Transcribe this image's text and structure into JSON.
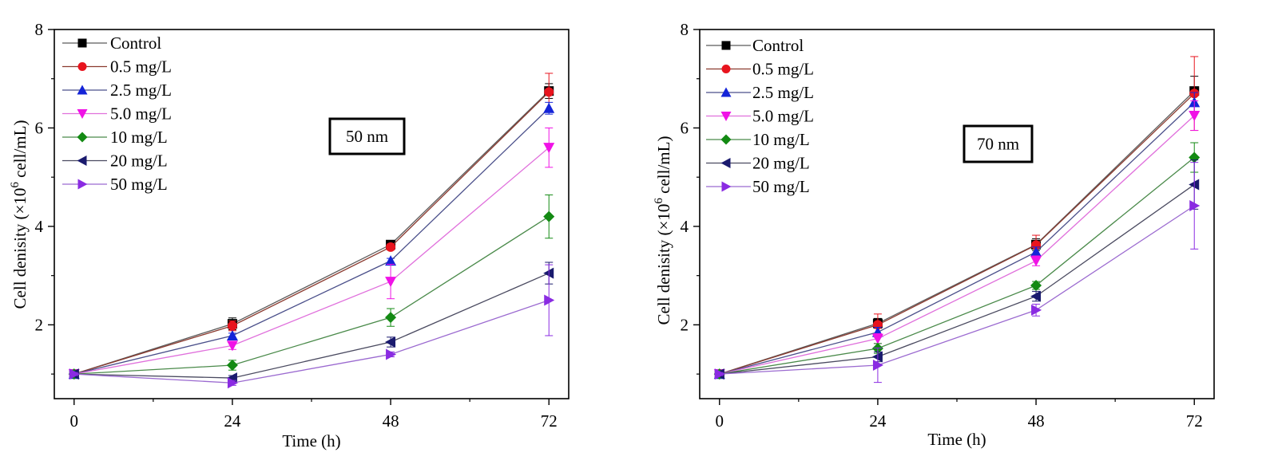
{
  "chart_data": [
    {
      "type": "line",
      "annotation": "50 nm",
      "xlabel": "Time (h)",
      "ylabel_main": "Cell denisity (×10",
      "ylabel_sup": "6",
      "ylabel_tail": " cell/mL)",
      "x": [
        0,
        24,
        48,
        72
      ],
      "xticks": [
        "0",
        "24",
        "48",
        "72"
      ],
      "yticks": [
        "2",
        "4",
        "6",
        "8"
      ],
      "xlim": [
        -3,
        75
      ],
      "ylim": [
        0.5,
        8
      ],
      "legend_position": "top-left",
      "series": [
        {
          "name": "Control",
          "marker": "square",
          "color": "#000000",
          "line": "#5a5a5a",
          "values": [
            1.0,
            2.02,
            3.63,
            6.75
          ],
          "errors": [
            0.03,
            0.12,
            0.05,
            0.15
          ]
        },
        {
          "name": "0.5 mg/L",
          "marker": "circle",
          "color": "#e8141e",
          "line": "#8b3a2f",
          "values": [
            1.0,
            1.98,
            3.58,
            6.73
          ],
          "errors": [
            0.03,
            0.1,
            0.06,
            0.38
          ]
        },
        {
          "name": "2.5 mg/L",
          "marker": "tri-up",
          "color": "#1424d8",
          "line": "#4a4f8a",
          "values": [
            1.0,
            1.78,
            3.3,
            6.4
          ],
          "errors": [
            0.03,
            0.05,
            0.05,
            0.12
          ]
        },
        {
          "name": "5.0 mg/L",
          "marker": "tri-down",
          "color": "#f012e6",
          "line": "#e070dc",
          "values": [
            1.0,
            1.58,
            2.88,
            5.6
          ],
          "errors": [
            0.03,
            0.08,
            0.35,
            0.4
          ]
        },
        {
          "name": "10  mg/L",
          "marker": "diamond",
          "color": "#138a13",
          "line": "#4a8a4a",
          "values": [
            1.0,
            1.18,
            2.15,
            4.2
          ],
          "errors": [
            0.03,
            0.1,
            0.18,
            0.44
          ]
        },
        {
          "name": "20  mg/L",
          "marker": "tri-left",
          "color": "#1a1a6e",
          "line": "#4a4a60",
          "values": [
            1.0,
            0.92,
            1.65,
            3.05
          ],
          "errors": [
            0.03,
            0.05,
            0.1,
            0.22
          ]
        },
        {
          "name": "50  mg/L",
          "marker": "tri-right",
          "color": "#8a2be2",
          "line": "#9b6ad0",
          "values": [
            1.0,
            0.82,
            1.4,
            2.5
          ],
          "errors": [
            0.03,
            0.05,
            0.05,
            0.72
          ]
        }
      ]
    },
    {
      "type": "line",
      "annotation": "70 nm",
      "xlabel": "Time (h)",
      "ylabel_main": "Cell denisity (×10",
      "ylabel_sup": "6",
      "ylabel_tail": " cell/mL)",
      "x": [
        0,
        24,
        48,
        72
      ],
      "xticks": [
        "0",
        "24",
        "48",
        "72"
      ],
      "yticks": [
        "2",
        "4",
        "6",
        "8"
      ],
      "xlim": [
        -3,
        75
      ],
      "ylim": [
        0.5,
        8
      ],
      "legend_position": "top-left",
      "series": [
        {
          "name": "Control",
          "marker": "square",
          "color": "#000000",
          "line": "#5a5a5a",
          "values": [
            1.0,
            2.03,
            3.63,
            6.75
          ],
          "errors": [
            0.03,
            0.1,
            0.12,
            0.3
          ]
        },
        {
          "name": "0.5 mg/L",
          "marker": "circle",
          "color": "#e8141e",
          "line": "#8b3a2f",
          "values": [
            1.0,
            2.0,
            3.62,
            6.7
          ],
          "errors": [
            0.03,
            0.22,
            0.2,
            0.75
          ]
        },
        {
          "name": "2.5 mg/L",
          "marker": "tri-up",
          "color": "#1424d8",
          "line": "#4a4f8a",
          "values": [
            1.0,
            1.85,
            3.48,
            6.52
          ],
          "errors": [
            0.03,
            0.1,
            0.1,
            0.2
          ]
        },
        {
          "name": "5.0 mg/L",
          "marker": "tri-down",
          "color": "#f012e6",
          "line": "#e070dc",
          "values": [
            1.0,
            1.72,
            3.3,
            6.25
          ],
          "errors": [
            0.03,
            0.1,
            0.1,
            0.3
          ]
        },
        {
          "name": "10  mg/L",
          "marker": "diamond",
          "color": "#138a13",
          "line": "#4a8a4a",
          "values": [
            1.0,
            1.52,
            2.8,
            5.4
          ],
          "errors": [
            0.03,
            0.1,
            0.08,
            0.3
          ]
        },
        {
          "name": "20  mg/L",
          "marker": "tri-left",
          "color": "#1a1a6e",
          "line": "#4a4a60",
          "values": [
            1.0,
            1.35,
            2.58,
            4.85
          ],
          "errors": [
            0.03,
            0.1,
            0.1,
            0.5
          ]
        },
        {
          "name": "50  mg/L",
          "marker": "tri-right",
          "color": "#8a2be2",
          "line": "#9b6ad0",
          "values": [
            1.0,
            1.18,
            2.3,
            4.42
          ],
          "errors": [
            0.03,
            0.35,
            0.12,
            0.88
          ]
        }
      ]
    }
  ]
}
